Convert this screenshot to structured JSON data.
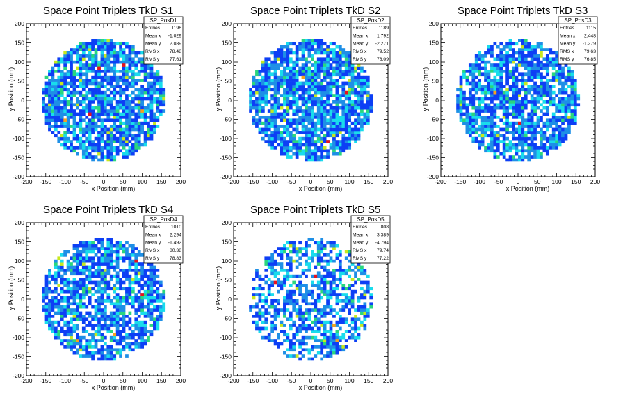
{
  "palette": [
    "#0d3ff5",
    "#1e8fe6",
    "#19dcec",
    "#2ad67f",
    "#c8e81e",
    "#f6a21e",
    "#e8121e"
  ],
  "chart_data": [
    {
      "type": "heatmap",
      "title": "Space Point Triplets TkD S1",
      "xlabel": "x Position (mm)",
      "ylabel": "y Position (mm)",
      "xlim": [
        -200,
        200
      ],
      "ylim": [
        -200,
        200
      ],
      "xticks": [
        "-200",
        "-150",
        "-100",
        "-50",
        "0",
        "50",
        "100",
        "150",
        "200"
      ],
      "yticks": [
        "-200",
        "-150",
        "-100",
        "-50",
        "0",
        "50",
        "100",
        "150",
        "200"
      ],
      "disk_radius": 160,
      "fill_fraction": 0.78,
      "seed": 11,
      "hot_cells": [
        [
          -40,
          -40
        ],
        [
          100,
          -30
        ],
        [
          -10,
          80
        ],
        [
          -100,
          -50
        ],
        [
          50,
          90
        ]
      ],
      "stats": {
        "name": "SP_PosD1",
        "rows": [
          {
            "label": "Entries",
            "value": "1196"
          },
          {
            "label": "Mean x",
            "value": "-1.029"
          },
          {
            "label": "Mean y",
            "value": "2.089"
          },
          {
            "label": "RMS x",
            "value": "78.48"
          },
          {
            "label": "RMS y",
            "value": "77.61"
          }
        ]
      }
    },
    {
      "type": "heatmap",
      "title": "Space Point Triplets TkD S2",
      "xlabel": "x Position (mm)",
      "ylabel": "y Position (mm)",
      "xlim": [
        -200,
        200
      ],
      "ylim": [
        -200,
        200
      ],
      "xticks": [
        "-200",
        "-150",
        "-100",
        "-50",
        "0",
        "50",
        "100",
        "150",
        "200"
      ],
      "yticks": [
        "-200",
        "-150",
        "-100",
        "-50",
        "0",
        "50",
        "100",
        "150",
        "200"
      ],
      "disk_radius": 160,
      "fill_fraction": 0.8,
      "seed": 23,
      "hot_cells": [
        [
          40,
          -110
        ],
        [
          -20,
          60
        ],
        [
          90,
          20
        ]
      ],
      "stats": {
        "name": "SP_PosD2",
        "rows": [
          {
            "label": "Entries",
            "value": "1189"
          },
          {
            "label": "Mean x",
            "value": "1.792"
          },
          {
            "label": "Mean y",
            "value": "-2.271"
          },
          {
            "label": "RMS x",
            "value": "79.52"
          },
          {
            "label": "RMS y",
            "value": "78.09"
          }
        ]
      }
    },
    {
      "type": "heatmap",
      "title": "Space Point Triplets TkD S3",
      "xlabel": "x Position (mm)",
      "ylabel": "y Position (mm)",
      "xlim": [
        -200,
        200
      ],
      "ylim": [
        -200,
        200
      ],
      "xticks": [
        "-200",
        "-150",
        "-100",
        "-50",
        "0",
        "50",
        "100",
        "150",
        "200"
      ],
      "yticks": [
        "-200",
        "-150",
        "-100",
        "-50",
        "0",
        "50",
        "100",
        "150",
        "200"
      ],
      "disk_radius": 160,
      "fill_fraction": 0.74,
      "seed": 37,
      "hot_cells": [
        [
          0,
          -60
        ],
        [
          -60,
          20
        ]
      ],
      "stats": {
        "name": "SP_PosD3",
        "rows": [
          {
            "label": "Entries",
            "value": "1115"
          },
          {
            "label": "Mean x",
            "value": "2.448"
          },
          {
            "label": "Mean y",
            "value": "-1.279"
          },
          {
            "label": "RMS x",
            "value": "79.63"
          },
          {
            "label": "RMS y",
            "value": "76.85"
          }
        ]
      }
    },
    {
      "type": "heatmap",
      "title": "Space Point Triplets TkD S4",
      "xlabel": "x Position (mm)",
      "ylabel": "y Position (mm)",
      "xlim": [
        -200,
        200
      ],
      "ylim": [
        -200,
        200
      ],
      "xticks": [
        "-200",
        "-150",
        "-100",
        "-50",
        "0",
        "50",
        "100",
        "150",
        "200"
      ],
      "yticks": [
        "-200",
        "-150",
        "-100",
        "-50",
        "0",
        "50",
        "100",
        "150",
        "200"
      ],
      "disk_radius": 160,
      "fill_fraction": 0.7,
      "seed": 53,
      "hot_cells": [
        [
          80,
          100
        ],
        [
          -70,
          -110
        ],
        [
          100,
          10
        ],
        [
          30,
          -90
        ]
      ],
      "stats": {
        "name": "SP_PosD4",
        "rows": [
          {
            "label": "Entries",
            "value": "1010"
          },
          {
            "label": "Mean x",
            "value": "2.294"
          },
          {
            "label": "Mean y",
            "value": "-1.492"
          },
          {
            "label": "RMS x",
            "value": "80.38"
          },
          {
            "label": "RMS y",
            "value": "78.83"
          }
        ]
      }
    },
    {
      "type": "heatmap",
      "title": "Space Point Triplets TkD S5",
      "xlabel": "x Position (mm)",
      "ylabel": "y Position (mm)",
      "xlim": [
        -200,
        200
      ],
      "ylim": [
        -200,
        200
      ],
      "xticks": [
        "-200",
        "-150",
        "-100",
        "-50",
        "0",
        "50",
        "100",
        "150",
        "200"
      ],
      "yticks": [
        "-200",
        "-150",
        "-100",
        "-50",
        "0",
        "50",
        "100",
        "150",
        "200"
      ],
      "disk_radius": 160,
      "fill_fraction": 0.55,
      "seed": 71,
      "hot_cells": [
        [
          10,
          60
        ],
        [
          60,
          -70
        ],
        [
          -90,
          40
        ],
        [
          70,
          -110
        ]
      ],
      "stats": {
        "name": "SP_PosD5",
        "rows": [
          {
            "label": "Entries",
            "value": "808"
          },
          {
            "label": "Mean x",
            "value": "3.389"
          },
          {
            "label": "Mean y",
            "value": "-4.794"
          },
          {
            "label": "RMS x",
            "value": "79.74"
          },
          {
            "label": "RMS y",
            "value": "77.22"
          }
        ]
      }
    }
  ]
}
